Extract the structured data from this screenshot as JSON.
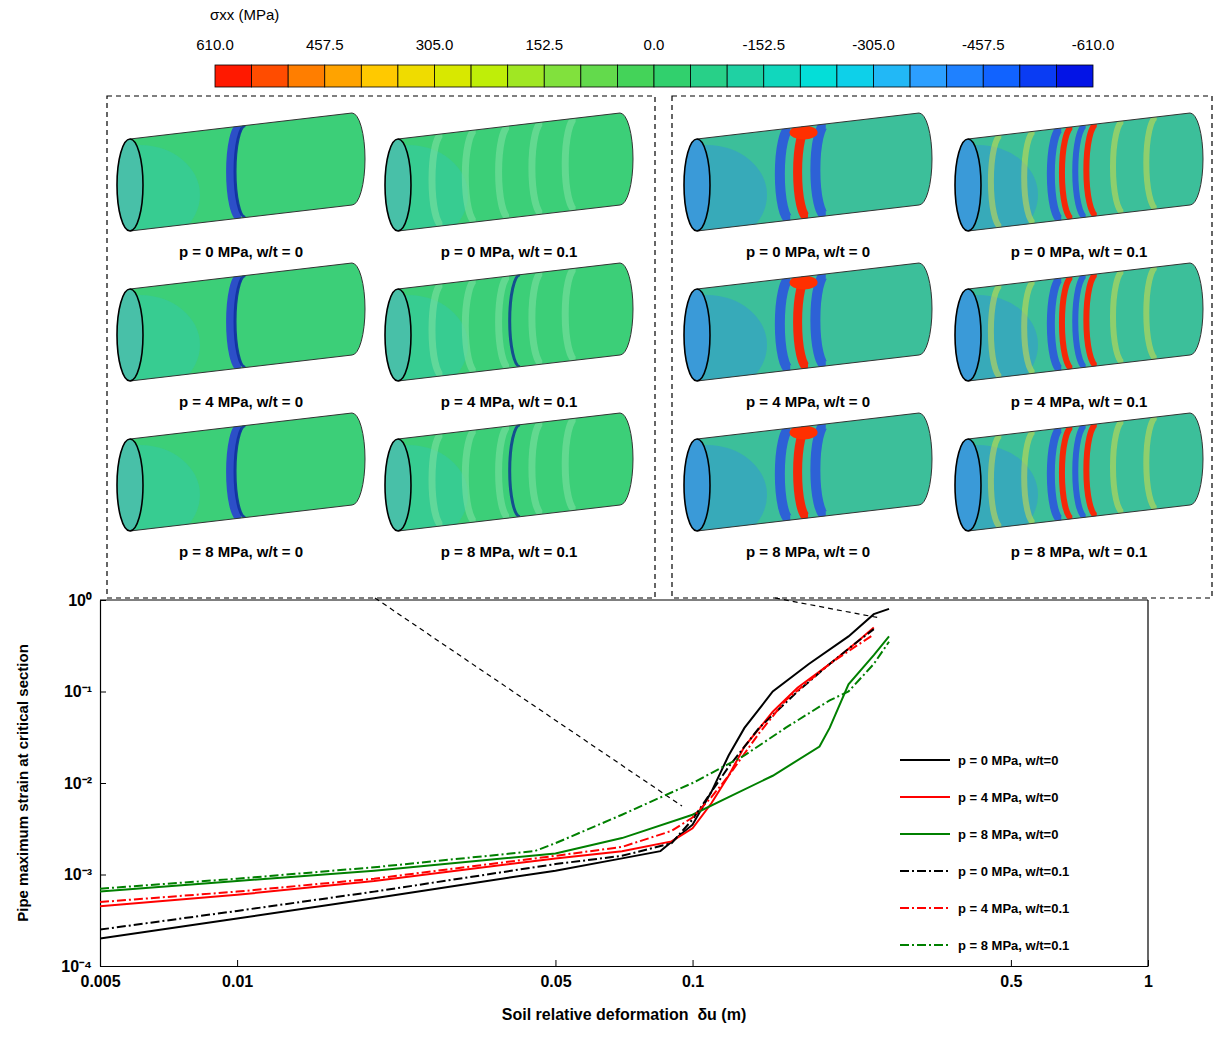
{
  "chart_data": {
    "type": "line",
    "xlabel": "Soil relative deformation  δu (m)",
    "ylabel": "Pipe maximum strain at critical section",
    "log": true,
    "xlim": [
      0.005,
      1
    ],
    "ylim": [
      0.0001,
      1
    ],
    "xticks": [
      0.005,
      0.01,
      0.05,
      0.1,
      0.5,
      1
    ],
    "yticks": [
      {
        "value": 0.0001,
        "label": "10⁻⁴"
      },
      {
        "value": 0.001,
        "label": "10⁻³"
      },
      {
        "value": 0.01,
        "label": "10⁻²"
      },
      {
        "value": 0.1,
        "label": "10⁻¹"
      },
      {
        "value": 1,
        "label": "10⁰"
      }
    ],
    "legend": "lower right",
    "series": [
      {
        "name": "p = 0 MPa, w/t=0",
        "color": "#000000",
        "line_style": "solid",
        "x": [
          0.005,
          0.01,
          0.02,
          0.03,
          0.05,
          0.07,
          0.085,
          0.1,
          0.11,
          0.12,
          0.13,
          0.15,
          0.18,
          0.22,
          0.25,
          0.27
        ],
        "values": [
          0.0002,
          0.00033,
          0.00055,
          0.00075,
          0.0011,
          0.0015,
          0.0018,
          0.0035,
          0.008,
          0.02,
          0.04,
          0.1,
          0.2,
          0.4,
          0.7,
          0.8
        ]
      },
      {
        "name": "p = 4 MPa, w/t=0",
        "color": "#ff0000",
        "line_style": "solid",
        "x": [
          0.005,
          0.01,
          0.02,
          0.05,
          0.07,
          0.09,
          0.1,
          0.11,
          0.12,
          0.13,
          0.15,
          0.17,
          0.2,
          0.23,
          0.25
        ],
        "values": [
          0.00045,
          0.0006,
          0.00085,
          0.0015,
          0.0018,
          0.0023,
          0.0032,
          0.006,
          0.012,
          0.025,
          0.06,
          0.11,
          0.2,
          0.35,
          0.5
        ]
      },
      {
        "name": "p = 8 MPa, w/t=0",
        "color": "#008000",
        "line_style": "solid",
        "x": [
          0.005,
          0.01,
          0.02,
          0.05,
          0.07,
          0.1,
          0.12,
          0.15,
          0.19,
          0.2,
          0.22,
          0.25,
          0.27
        ],
        "values": [
          0.00065,
          0.00085,
          0.0011,
          0.0017,
          0.0025,
          0.0045,
          0.007,
          0.012,
          0.025,
          0.04,
          0.12,
          0.25,
          0.4
        ]
      },
      {
        "name": "p = 0 MPa, w/t=0.1",
        "color": "#000000",
        "line_style": "dashdot",
        "x": [
          0.005,
          0.01,
          0.02,
          0.05,
          0.07,
          0.09,
          0.1,
          0.11,
          0.12,
          0.14,
          0.17,
          0.2,
          0.23,
          0.25
        ],
        "values": [
          0.00025,
          0.0004,
          0.00065,
          0.0013,
          0.0016,
          0.0022,
          0.004,
          0.008,
          0.015,
          0.04,
          0.1,
          0.2,
          0.35,
          0.48
        ]
      },
      {
        "name": "p = 4 MPa, w/t=0.1",
        "color": "#ff0000",
        "line_style": "dashdot",
        "x": [
          0.005,
          0.01,
          0.02,
          0.05,
          0.07,
          0.09,
          0.1,
          0.11,
          0.12,
          0.14,
          0.16,
          0.2,
          0.23,
          0.25
        ],
        "values": [
          0.0005,
          0.00065,
          0.0009,
          0.0016,
          0.002,
          0.003,
          0.0042,
          0.007,
          0.012,
          0.035,
          0.08,
          0.2,
          0.32,
          0.42
        ]
      },
      {
        "name": "p = 8 MPa, w/t=0.1",
        "color": "#008000",
        "line_style": "dashdot",
        "x": [
          0.005,
          0.01,
          0.02,
          0.045,
          0.05,
          0.07,
          0.1,
          0.13,
          0.16,
          0.2,
          0.22,
          0.25,
          0.27
        ],
        "values": [
          0.0007,
          0.0009,
          0.0012,
          0.0018,
          0.0022,
          0.0045,
          0.01,
          0.02,
          0.04,
          0.08,
          0.1,
          0.2,
          0.35
        ]
      }
    ],
    "colorbar": {
      "title": "σxx (MPa)",
      "range": [
        610,
        -610
      ],
      "ticks": [
        {
          "value": 610,
          "label": "610.0"
        },
        457.5,
        {
          "value": 305,
          "label": "305.0"
        },
        152.5,
        {
          "value": 0,
          "label": "0.0"
        },
        -152.5,
        {
          "value": -305,
          "label": "-305.0"
        },
        -457.5,
        {
          "value": -610,
          "label": "-610.0"
        }
      ]
    },
    "panel_labels": [
      [
        "p = 0 MPa, w/t = 0",
        "p = 0 MPa, w/t = 0.1",
        "p = 4 MPa, w/t = 0",
        "p = 4 MPa, w/t = 0.1",
        "p = 8 MPa, w/t = 0",
        "p = 8 MPa, w/t = 0.1"
      ],
      [
        "p = 0 MPa, w/t = 0",
        "p = 0 MPa, w/t = 0.1",
        "p = 4 MPa, w/t = 0",
        "p = 4 MPa, w/t = 0.1",
        "p = 8 MPa, w/t = 0",
        "p = 8 MPa, w/t = 0.1"
      ]
    ]
  }
}
